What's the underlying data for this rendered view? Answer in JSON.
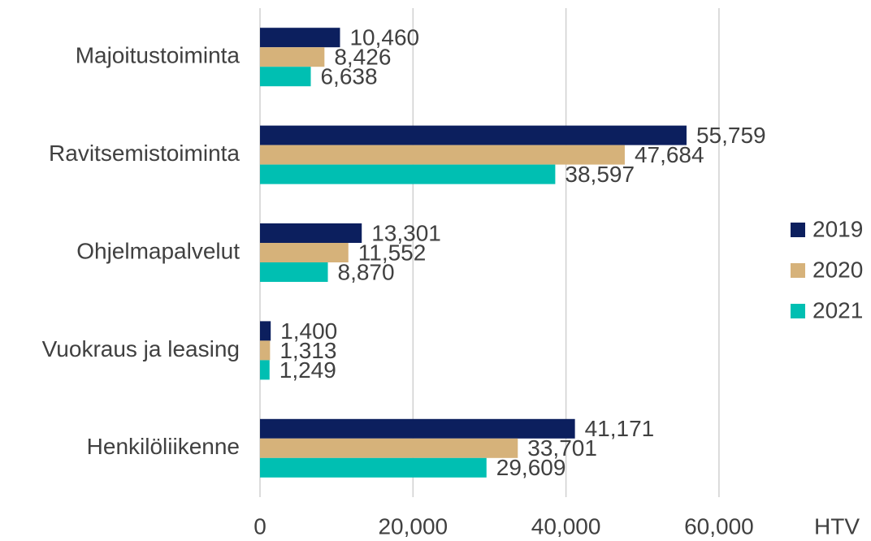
{
  "chart_data": {
    "type": "bar",
    "orientation": "horizontal",
    "categories": [
      "Majoitustoiminta",
      "Ravitsemistoiminta",
      "Ohjelmapalvelut",
      "Vuokraus ja leasing",
      "Henkilöliikenne"
    ],
    "series": [
      {
        "name": "2019",
        "color": "#0c1f5e",
        "values": [
          10460,
          55759,
          13301,
          1400,
          41171
        ],
        "value_labels": [
          "10,460",
          "55,759",
          "13,301",
          "1,400",
          "41,171"
        ]
      },
      {
        "name": "2020",
        "color": "#d6b27a",
        "values": [
          8426,
          47684,
          11552,
          1313,
          33701
        ],
        "value_labels": [
          "8,426",
          "47,684",
          "11,552",
          "1,313",
          "33,701"
        ]
      },
      {
        "name": "2021",
        "color": "#00bfb2",
        "values": [
          6638,
          38597,
          8870,
          1249,
          29609
        ],
        "value_labels": [
          "6,638",
          "38,597",
          "8,870",
          "1,249",
          "29,609"
        ]
      }
    ],
    "x_label": "HTV",
    "xlim": [
      0,
      70000
    ],
    "xticks": [
      0,
      {
        "value": 20000,
        "label": "20,000"
      },
      {
        "value": 40000,
        "label": "40,000"
      },
      {
        "value": 60000,
        "label": "60,000"
      }
    ],
    "grid": true,
    "legend": "right"
  }
}
